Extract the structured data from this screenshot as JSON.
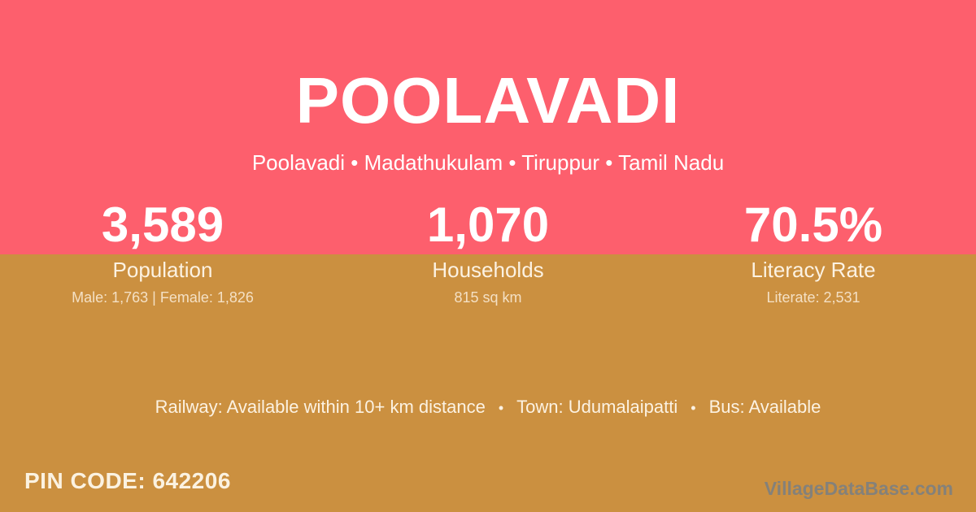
{
  "card": {
    "title": "POOLAVADI",
    "subtitle": "Poolavadi • Madathukulam • Tiruppur • Tamil Nadu",
    "stats": [
      {
        "value": "3,589",
        "label": "Population",
        "detail": "Male: 1,763 | Female: 1,826"
      },
      {
        "value": "1,070",
        "label": "Households",
        "detail": "815 sq km"
      },
      {
        "value": "70.5%",
        "label": "Literacy Rate",
        "detail": "Literate: 2,531"
      }
    ],
    "info": {
      "separator": "•",
      "items": [
        "Railway: Available within 10+ km distance",
        "Town: Udumalaipatti",
        "Bus: Available"
      ]
    },
    "pin_code": "PIN CODE: 642206",
    "watermark": "VillageDataBase.com",
    "colors": {
      "top_bg": "#fd5f6d",
      "bottom_bg": "#cb9040",
      "text": "#ffffff",
      "muted_text": "#fcf2e2",
      "watermark": "#84817a"
    }
  }
}
